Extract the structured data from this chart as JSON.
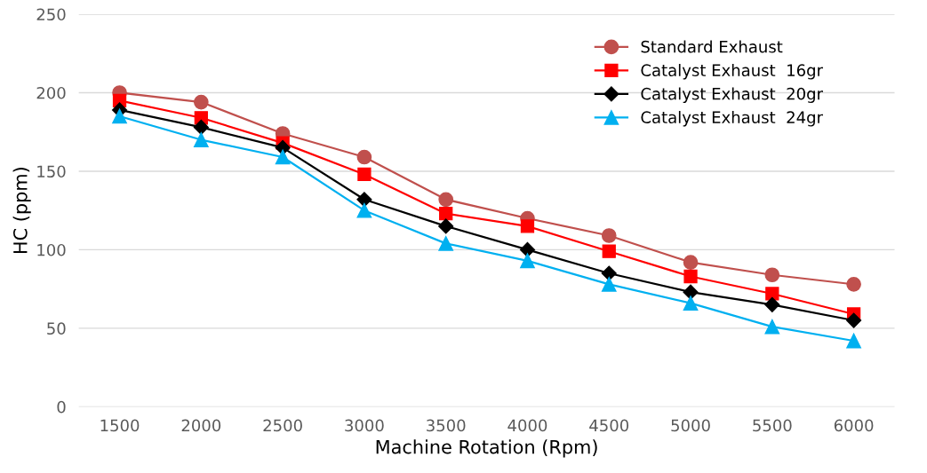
{
  "chart_data": {
    "type": "line",
    "xlabel": "Machine Rotation (Rpm)",
    "ylabel": "HC (ppm)",
    "categories": [
      "1500",
      "2000",
      "2500",
      "3000",
      "3500",
      "4000",
      "4500",
      "5000",
      "5500",
      "6000"
    ],
    "series": [
      {
        "name": "Standard Exhaust",
        "color": "#c0504d",
        "marker": "circle",
        "values": [
          200,
          194,
          174,
          159,
          132,
          120,
          109,
          92,
          84,
          78
        ]
      },
      {
        "name": "Catalyst Exhaust  16gr",
        "color": "#ff0000",
        "marker": "square",
        "values": [
          195,
          184,
          168,
          148,
          123,
          115,
          99,
          83,
          72,
          59
        ]
      },
      {
        "name": "Catalyst Exhaust  20gr",
        "color": "#000000",
        "marker": "diamond",
        "values": [
          189,
          178,
          165,
          132,
          115,
          100,
          85,
          73,
          65,
          55
        ]
      },
      {
        "name": "Catalyst Exhaust  24gr",
        "color": "#00b0f0",
        "marker": "triangle",
        "values": [
          185,
          170,
          159,
          125,
          104,
          93,
          78,
          66,
          51,
          42
        ]
      }
    ],
    "ylim": [
      0,
      250
    ],
    "yticks": [
      0,
      50,
      100,
      150,
      200,
      250
    ],
    "grid": "y",
    "legend": "top right",
    "line_style": "solid"
  }
}
